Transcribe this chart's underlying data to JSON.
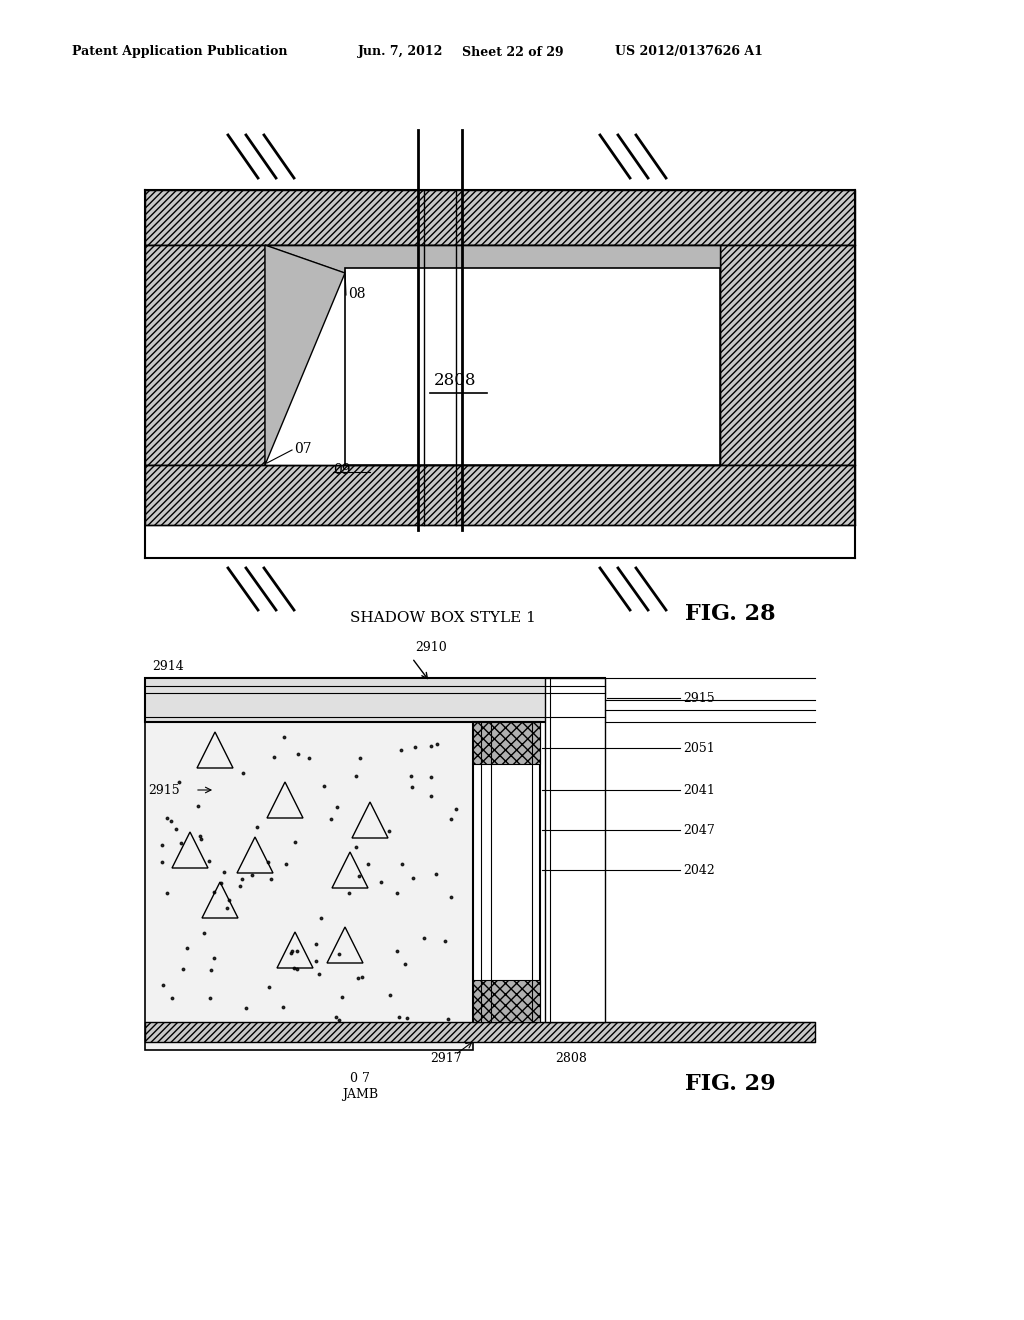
{
  "bg_color": "#ffffff",
  "header_text": "Patent Application Publication",
  "header_date": "Jun. 7, 2012",
  "header_sheet": "Sheet 22 of 29",
  "header_patent": "US 2012/0137626 A1",
  "fig28_label": "FIG. 28",
  "fig29_label": "FIG. 29",
  "shadow_box_label": "SHADOW BOX STYLE 1",
  "label_2808": "2808",
  "label_07": "07",
  "label_08": "08",
  "label_09": "09",
  "label_2914": "2914",
  "label_2910": "2910",
  "label_2915a": "2915",
  "label_2915b": "2915",
  "label_2051": "2051",
  "label_2041": "2041",
  "label_2047": "2047",
  "label_2042": "2042",
  "label_2917": "2917",
  "label_2808b": "2808",
  "label_07b": "0 7",
  "label_jamb": "JAMB"
}
